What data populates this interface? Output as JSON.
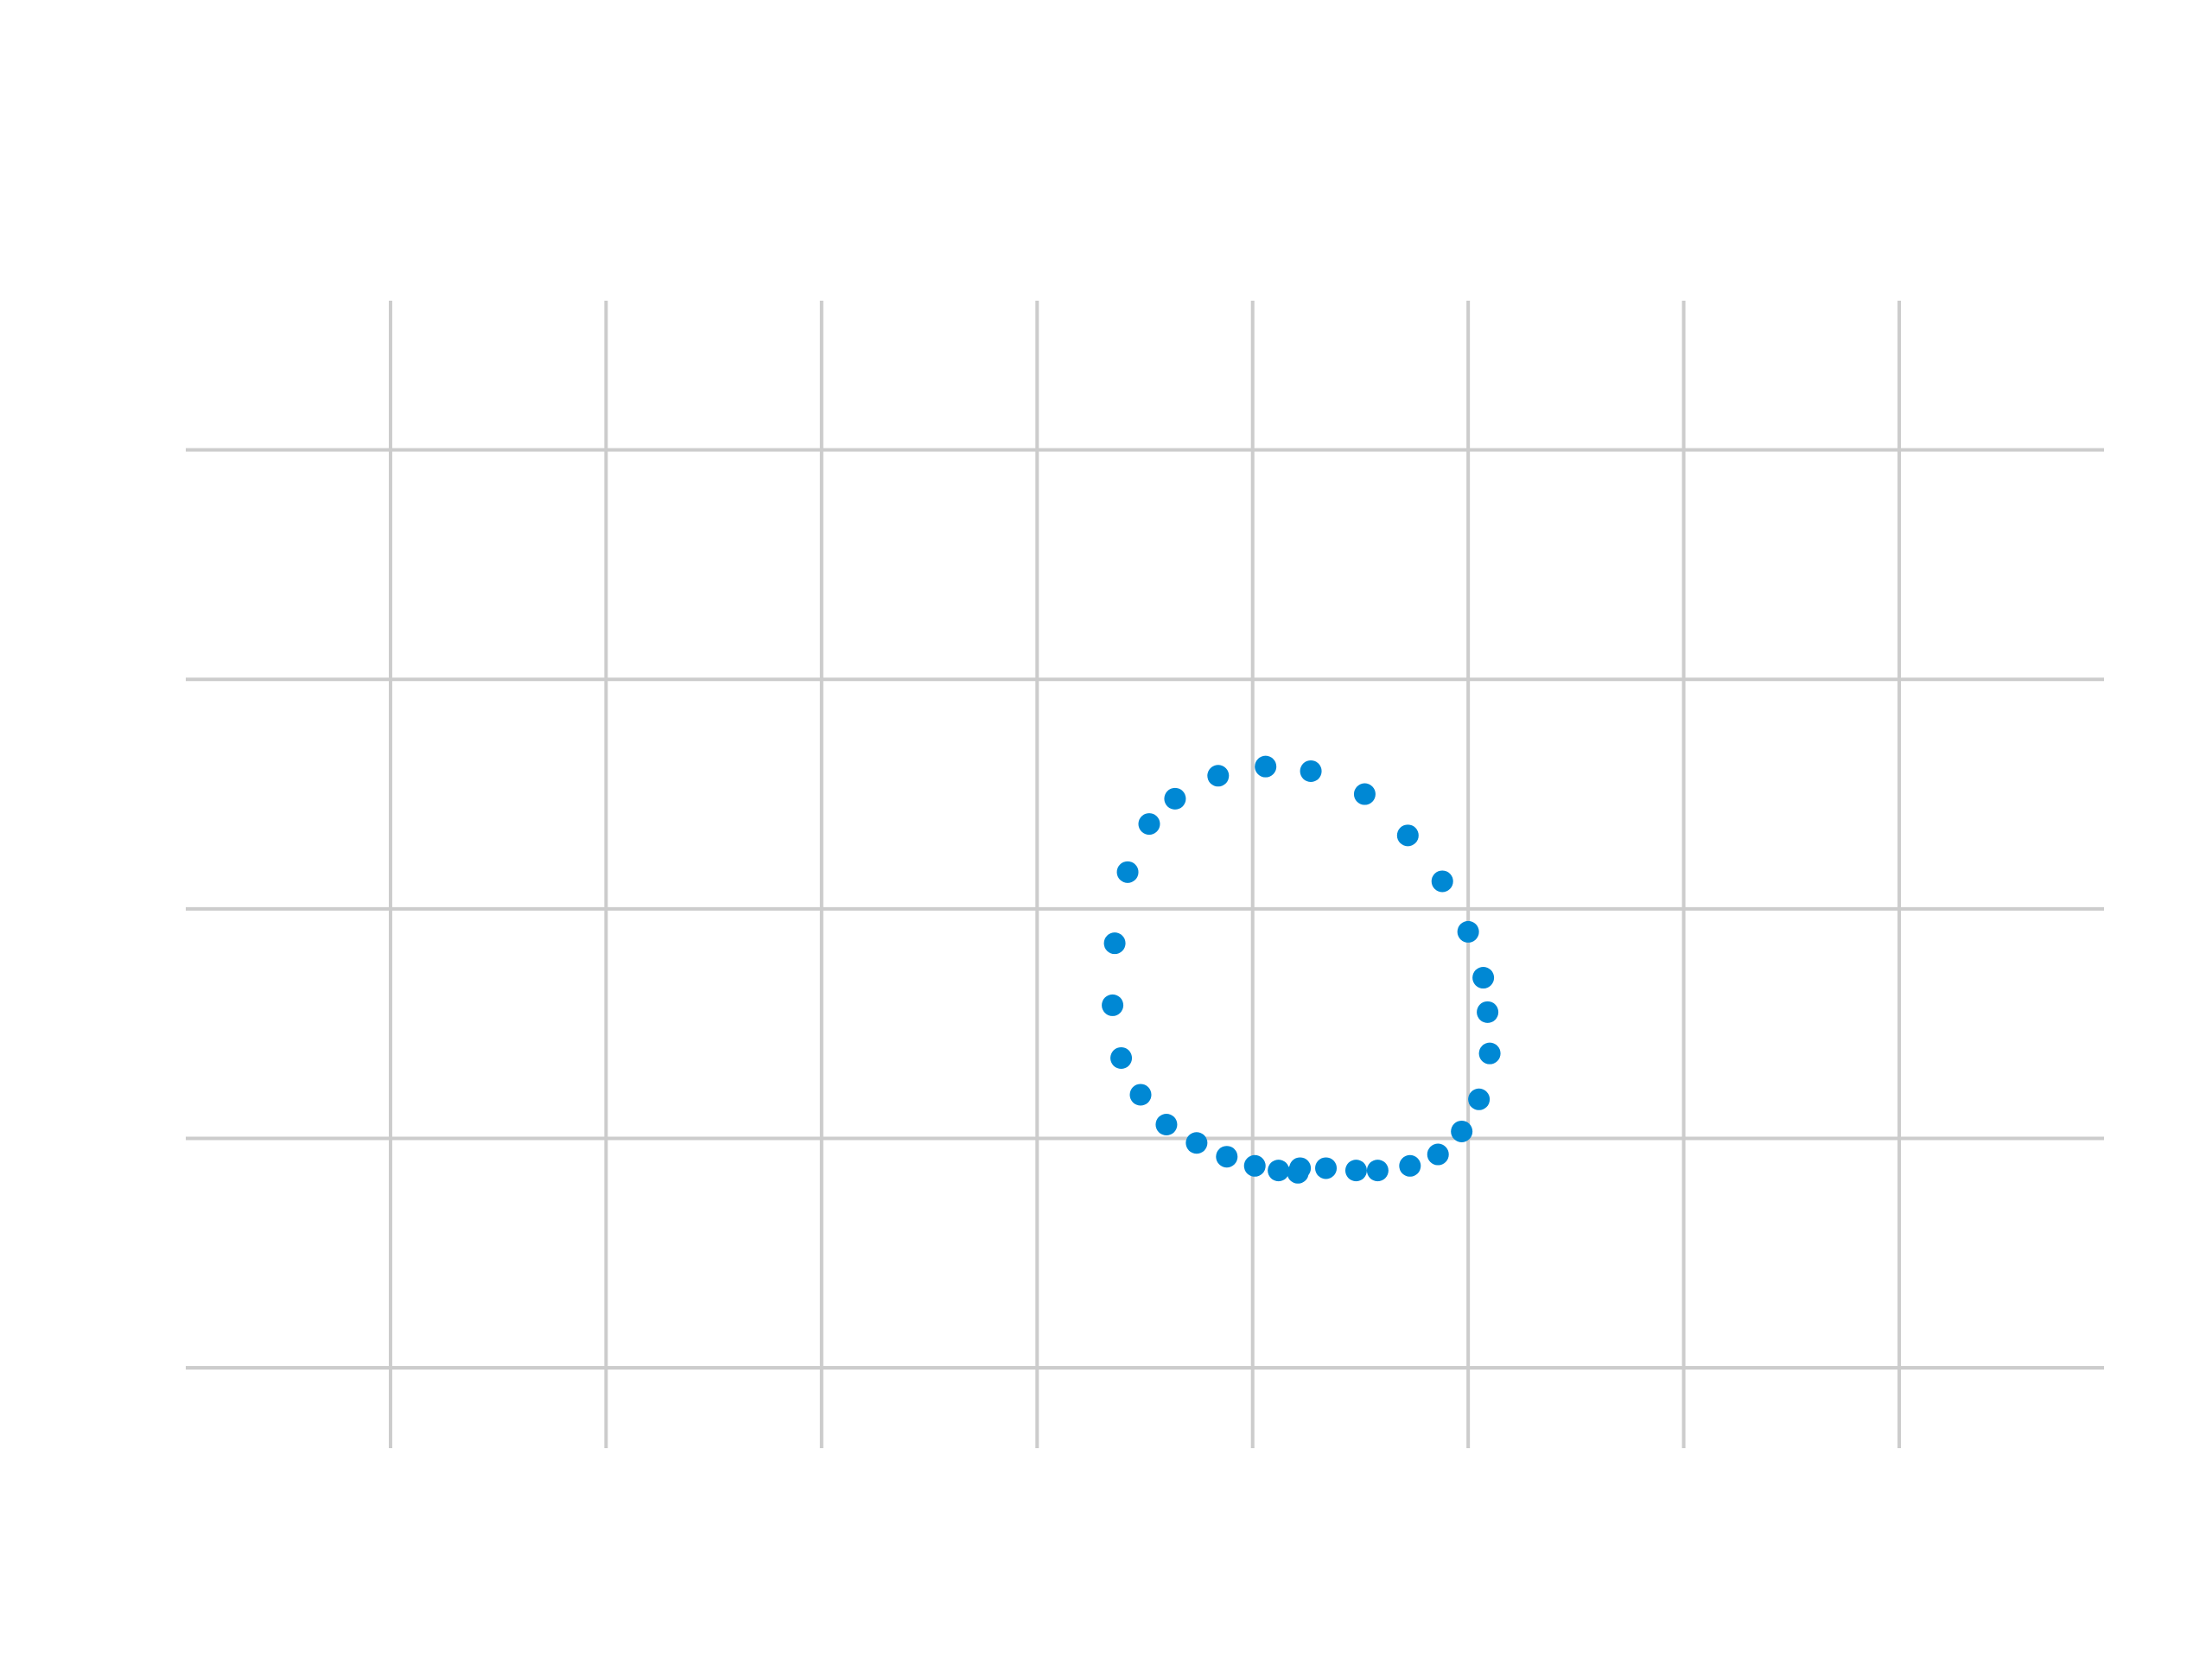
{
  "chart_data": {
    "type": "scatter",
    "title": "",
    "xlabel": "",
    "ylabel": "",
    "xlim": [
      -0.95,
      7.95
    ],
    "ylim": [
      -0.35,
      4.65
    ],
    "x_gridlines": [
      0,
      1,
      2,
      3,
      4,
      5,
      6,
      7
    ],
    "y_gridlines": [
      0,
      1,
      2,
      3,
      4
    ],
    "grid": true,
    "legend": "none",
    "series": [
      {
        "color": "#0088d4",
        "points": [
          {
            "x": 4.06,
            "y": 2.62
          },
          {
            "x": 4.27,
            "y": 2.6
          },
          {
            "x": 4.52,
            "y": 2.5
          },
          {
            "x": 4.72,
            "y": 2.32
          },
          {
            "x": 4.88,
            "y": 2.12
          },
          {
            "x": 5.0,
            "y": 1.9
          },
          {
            "x": 5.07,
            "y": 1.7
          },
          {
            "x": 5.09,
            "y": 1.55
          },
          {
            "x": 5.1,
            "y": 1.37
          },
          {
            "x": 5.05,
            "y": 1.17
          },
          {
            "x": 4.97,
            "y": 1.03
          },
          {
            "x": 4.86,
            "y": 0.93
          },
          {
            "x": 4.73,
            "y": 0.88
          },
          {
            "x": 4.58,
            "y": 0.86
          },
          {
            "x": 4.48,
            "y": 0.86
          },
          {
            "x": 4.34,
            "y": 0.87
          },
          {
            "x": 4.22,
            "y": 0.87
          },
          {
            "x": 4.21,
            "y": 0.85
          },
          {
            "x": 4.12,
            "y": 0.86
          },
          {
            "x": 4.01,
            "y": 0.88
          },
          {
            "x": 3.88,
            "y": 0.92
          },
          {
            "x": 3.74,
            "y": 0.98
          },
          {
            "x": 3.6,
            "y": 1.06
          },
          {
            "x": 3.48,
            "y": 1.19
          },
          {
            "x": 3.39,
            "y": 1.35
          },
          {
            "x": 3.35,
            "y": 1.58
          },
          {
            "x": 3.36,
            "y": 1.85
          },
          {
            "x": 3.42,
            "y": 2.16
          },
          {
            "x": 3.52,
            "y": 2.37
          },
          {
            "x": 3.64,
            "y": 2.48
          },
          {
            "x": 3.84,
            "y": 2.58
          }
        ]
      }
    ]
  }
}
